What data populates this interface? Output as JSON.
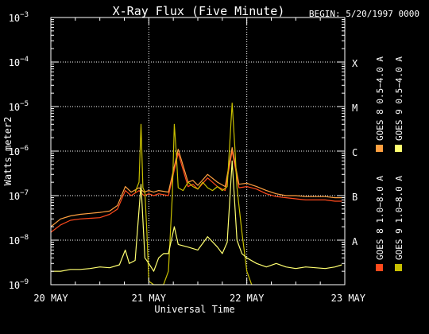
{
  "chart_data": {
    "type": "line",
    "title": "X-Ray Flux (Five Minute)",
    "begin_label": "BEGIN: 5/20/1997 0000",
    "xlabel": "Universal Time",
    "ylabel": "Watts meter2",
    "y_scale": "log",
    "ylim": [
      1e-09,
      0.001
    ],
    "y_ticks": [
      {
        "base": "10",
        "exp": "−9",
        "value": 1e-09
      },
      {
        "base": "10",
        "exp": "−8",
        "value": 1e-08
      },
      {
        "base": "10",
        "exp": "−7",
        "value": 1e-07
      },
      {
        "base": "10",
        "exp": "−6",
        "value": 1e-06
      },
      {
        "base": "10",
        "exp": "−5",
        "value": 1e-05
      },
      {
        "base": "10",
        "exp": "−4",
        "value": 0.0001
      },
      {
        "base": "10",
        "exp": "−3",
        "value": 0.001
      }
    ],
    "xlim_days": [
      0,
      3
    ],
    "x_ticks": [
      {
        "label": "20 MAY",
        "day": 0
      },
      {
        "label": "21 MAY",
        "day": 1
      },
      {
        "label": "22 MAY",
        "day": 2
      },
      {
        "label": "23 MAY",
        "day": 3
      }
    ],
    "flare_classes": [
      {
        "label": "A",
        "value": 1e-08
      },
      {
        "label": "B",
        "value": 1e-07
      },
      {
        "label": "C",
        "value": 1e-06
      },
      {
        "label": "M",
        "value": 1e-05
      },
      {
        "label": "X",
        "value": 0.0001
      }
    ],
    "grid": "dotted lines at each flare class level and at day boundaries",
    "legend": {
      "placement": "right, vertical",
      "entries": [
        {
          "text": "GOES 8 1.0−8.0 A",
          "color": "#ff4a1c"
        },
        {
          "text": "GOES 8 0.5−4.0 A",
          "color": "#ffa040"
        },
        {
          "text": "GOES 9 1.0−8.0 A",
          "color": "#c8c000"
        },
        {
          "text": "GOES 9 0.5−4.0 A",
          "color": "#ffff70"
        }
      ]
    },
    "series": [
      {
        "name": "GOES 8 1.0−8.0 A",
        "color": "#ff4a1c",
        "x": [
          0.0,
          0.1,
          0.2,
          0.3,
          0.4,
          0.5,
          0.6,
          0.68,
          0.76,
          0.82,
          0.9,
          0.95,
          1.0,
          1.05,
          1.1,
          1.2,
          1.3,
          1.4,
          1.45,
          1.5,
          1.6,
          1.7,
          1.78,
          1.85,
          1.92,
          2.0,
          2.1,
          2.2,
          2.3,
          2.4,
          2.5,
          2.6,
          2.7,
          2.8,
          2.9,
          2.97
        ],
        "y": [
          1.5e-08,
          2.2e-08,
          2.8e-08,
          3e-08,
          3.1e-08,
          3.2e-08,
          3.8e-08,
          5e-08,
          1.3e-07,
          1e-07,
          1.3e-07,
          1e-07,
          1.1e-07,
          1e-07,
          1.1e-07,
          1e-07,
          9e-07,
          1.6e-07,
          1.8e-07,
          1.4e-07,
          2.5e-07,
          1.6e-07,
          1.3e-07,
          1e-06,
          1.5e-07,
          1.6e-07,
          1.4e-07,
          1.1e-07,
          9.5e-08,
          9e-08,
          8.5e-08,
          8e-08,
          8e-08,
          8e-08,
          7.5e-08,
          7.5e-08
        ]
      },
      {
        "name": "GOES 8 0.5−4.0 A",
        "color": "#ffa040",
        "x": [
          0.0,
          0.1,
          0.2,
          0.3,
          0.4,
          0.5,
          0.6,
          0.68,
          0.76,
          0.82,
          0.9,
          0.95,
          1.0,
          1.05,
          1.1,
          1.2,
          1.3,
          1.4,
          1.45,
          1.5,
          1.6,
          1.7,
          1.78,
          1.85,
          1.92,
          2.0,
          2.1,
          2.2,
          2.3,
          2.4,
          2.5,
          2.6,
          2.7,
          2.8,
          2.9,
          2.97
        ],
        "y": [
          2e-08,
          3e-08,
          3.5e-08,
          3.8e-08,
          4e-08,
          4.2e-08,
          4.5e-08,
          6e-08,
          1.6e-07,
          1.2e-07,
          1.5e-07,
          1.2e-07,
          1.3e-07,
          1.2e-07,
          1.3e-07,
          1.2e-07,
          1.1e-06,
          2e-07,
          2.2e-07,
          1.7e-07,
          3e-07,
          2e-07,
          1.6e-07,
          1.2e-06,
          1.8e-07,
          1.9e-07,
          1.6e-07,
          1.3e-07,
          1.1e-07,
          1e-07,
          1e-07,
          9.5e-08,
          9.5e-08,
          9.5e-08,
          9e-08,
          9e-08
        ]
      },
      {
        "name": "GOES 9 1.0−8.0 A",
        "color": "#c8c000",
        "x": [
          0.86,
          0.9,
          0.92,
          0.94,
          0.96,
          0.98,
          1.0,
          1.05,
          1.1,
          1.15,
          1.2,
          1.24,
          1.26,
          1.28,
          1.3,
          1.35,
          1.4,
          1.45,
          1.5,
          1.55,
          1.6,
          1.65,
          1.7,
          1.75,
          1.8,
          1.85,
          1.88,
          1.9,
          1.95,
          2.0,
          2.05
        ],
        "y": [
          1.2e-07,
          2e-07,
          4e-06,
          1.5e-07,
          1.2e-07,
          1.5e-08,
          1.2e-09,
          1e-09,
          1e-09,
          1e-09,
          2e-09,
          1e-07,
          4e-06,
          9e-07,
          1.5e-07,
          1.3e-07,
          2e-07,
          1.6e-07,
          1.4e-07,
          2e-07,
          1.5e-07,
          1.3e-07,
          1.6e-07,
          1.3e-07,
          1.6e-07,
          1.2e-05,
          1e-06,
          1.5e-07,
          1.5e-08,
          2e-09,
          1e-09
        ]
      },
      {
        "name": "GOES 9 0.5−4.0 A",
        "color": "#ffff70",
        "x": [
          0.0,
          0.1,
          0.2,
          0.3,
          0.4,
          0.5,
          0.6,
          0.7,
          0.76,
          0.8,
          0.86,
          0.92,
          0.96,
          1.0,
          1.05,
          1.1,
          1.15,
          1.2,
          1.26,
          1.3,
          1.4,
          1.5,
          1.6,
          1.7,
          1.75,
          1.8,
          1.85,
          1.9,
          1.95,
          2.0,
          2.1,
          2.2,
          2.3,
          2.4,
          2.5,
          2.6,
          2.7,
          2.8,
          2.9,
          2.97
        ],
        "y": [
          2e-09,
          2e-09,
          2.2e-09,
          2.2e-09,
          2.3e-09,
          2.5e-09,
          2.4e-09,
          2.8e-09,
          6e-09,
          3e-09,
          3.5e-09,
          1.8e-07,
          4e-09,
          3e-09,
          2e-09,
          4e-09,
          5e-09,
          5e-09,
          2e-08,
          8e-09,
          7e-09,
          6e-09,
          1.2e-08,
          7e-09,
          5e-09,
          9e-09,
          6e-07,
          1e-08,
          5e-09,
          4e-09,
          3e-09,
          2.5e-09,
          3e-09,
          2.5e-09,
          2.3e-09,
          2.5e-09,
          2.4e-09,
          2.3e-09,
          2.5e-09,
          2.8e-09
        ]
      }
    ]
  }
}
